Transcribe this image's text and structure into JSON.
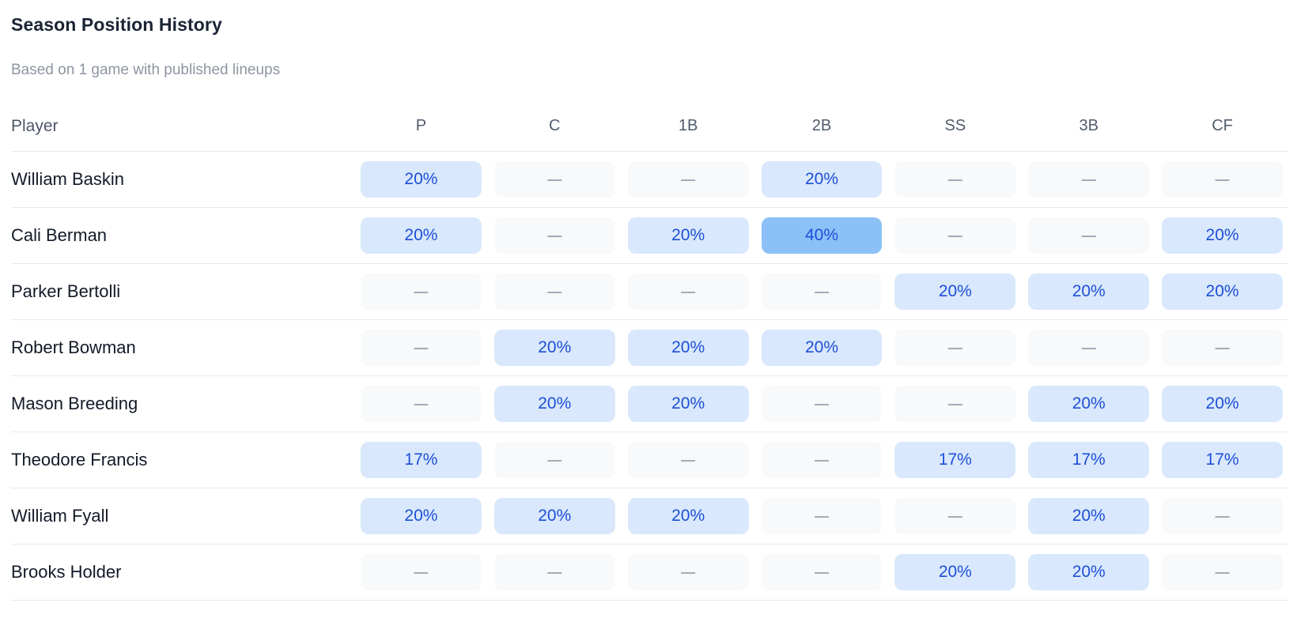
{
  "header": {
    "title": "Season Position History",
    "subtitle": "Based on 1 game with published lineups"
  },
  "table": {
    "player_column_label": "Player",
    "position_columns": [
      "P",
      "C",
      "1B",
      "2B",
      "SS",
      "3B",
      "CF"
    ],
    "empty_cell_symbol": "—",
    "rows": [
      {
        "player": "William Baskin",
        "cells": [
          "20%",
          "",
          "",
          "20%",
          "",
          "",
          ""
        ]
      },
      {
        "player": "Cali Berman",
        "cells": [
          "20%",
          "",
          "20%",
          "40%",
          "",
          "",
          "20%"
        ]
      },
      {
        "player": "Parker Bertolli",
        "cells": [
          "",
          "",
          "",
          "",
          "20%",
          "20%",
          "20%"
        ]
      },
      {
        "player": "Robert Bowman",
        "cells": [
          "",
          "20%",
          "20%",
          "20%",
          "",
          "",
          ""
        ]
      },
      {
        "player": "Mason Breeding",
        "cells": [
          "",
          "20%",
          "20%",
          "",
          "",
          "20%",
          "20%"
        ]
      },
      {
        "player": "Theodore Francis",
        "cells": [
          "17%",
          "",
          "",
          "",
          "17%",
          "17%",
          "17%"
        ]
      },
      {
        "player": "William Fyall",
        "cells": [
          "20%",
          "20%",
          "20%",
          "",
          "",
          "20%",
          ""
        ]
      },
      {
        "player": "Brooks Holder",
        "cells": [
          "",
          "",
          "",
          "",
          "20%",
          "20%",
          ""
        ]
      }
    ]
  },
  "colors": {
    "badge_bg_low": "#d9e8fc",
    "badge_bg_high": "#8cc1f7",
    "badge_text": "#1d4fd8",
    "empty_bg": "#f7f9fa",
    "empty_dash": "#a0a7b2",
    "high_threshold_pct": 40
  }
}
